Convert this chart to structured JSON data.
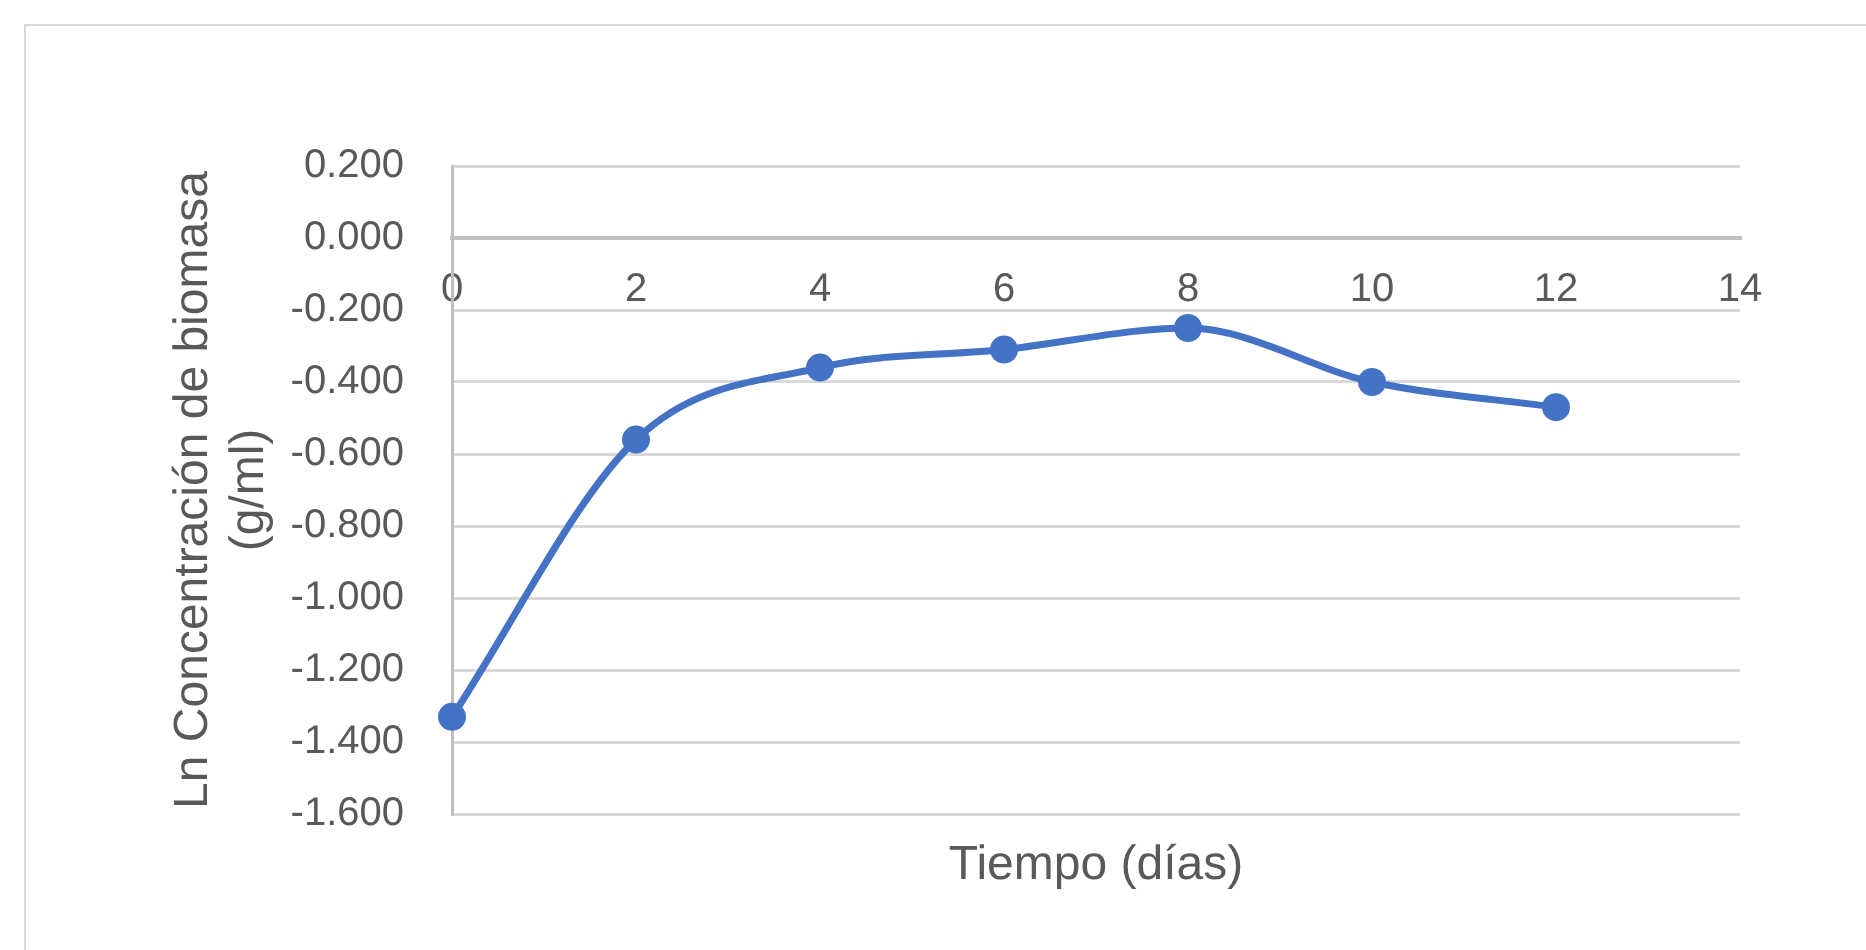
{
  "chart_data": {
    "type": "line",
    "xlabel": "Tiempo (días)",
    "ylabel": "Ln Concentración de biomasa (g/ml)",
    "x": [
      0,
      2,
      4,
      6,
      8,
      10,
      12
    ],
    "series": [
      {
        "color": "#4472c4",
        "values": [
          -1.33,
          -0.56,
          -0.36,
          -0.31,
          -0.25,
          -0.4,
          -0.47
        ]
      }
    ],
    "xlim": [
      0,
      14
    ],
    "xticks": [
      0,
      2,
      4,
      6,
      8,
      10,
      12,
      14
    ],
    "ylim": [
      -1.6,
      0.2
    ],
    "yticks": [
      {
        "value": 0.2,
        "label": "0.200"
      },
      {
        "value": 0,
        "label": "0.000"
      },
      {
        "value": -0.2,
        "label": "-0.200"
      },
      {
        "value": -0.4,
        "label": "-0.400"
      },
      {
        "value": -0.6,
        "label": "-0.600"
      },
      {
        "value": -0.8,
        "label": "-0.800"
      },
      {
        "value": -1,
        "label": "-1.000"
      },
      {
        "value": -1.2,
        "label": "-1.200"
      },
      {
        "value": -1.4,
        "label": "-1.400"
      },
      {
        "value": -1.6,
        "label": "-1.600"
      }
    ],
    "grid": "y",
    "marker": "circle",
    "line_style": "solid"
  }
}
